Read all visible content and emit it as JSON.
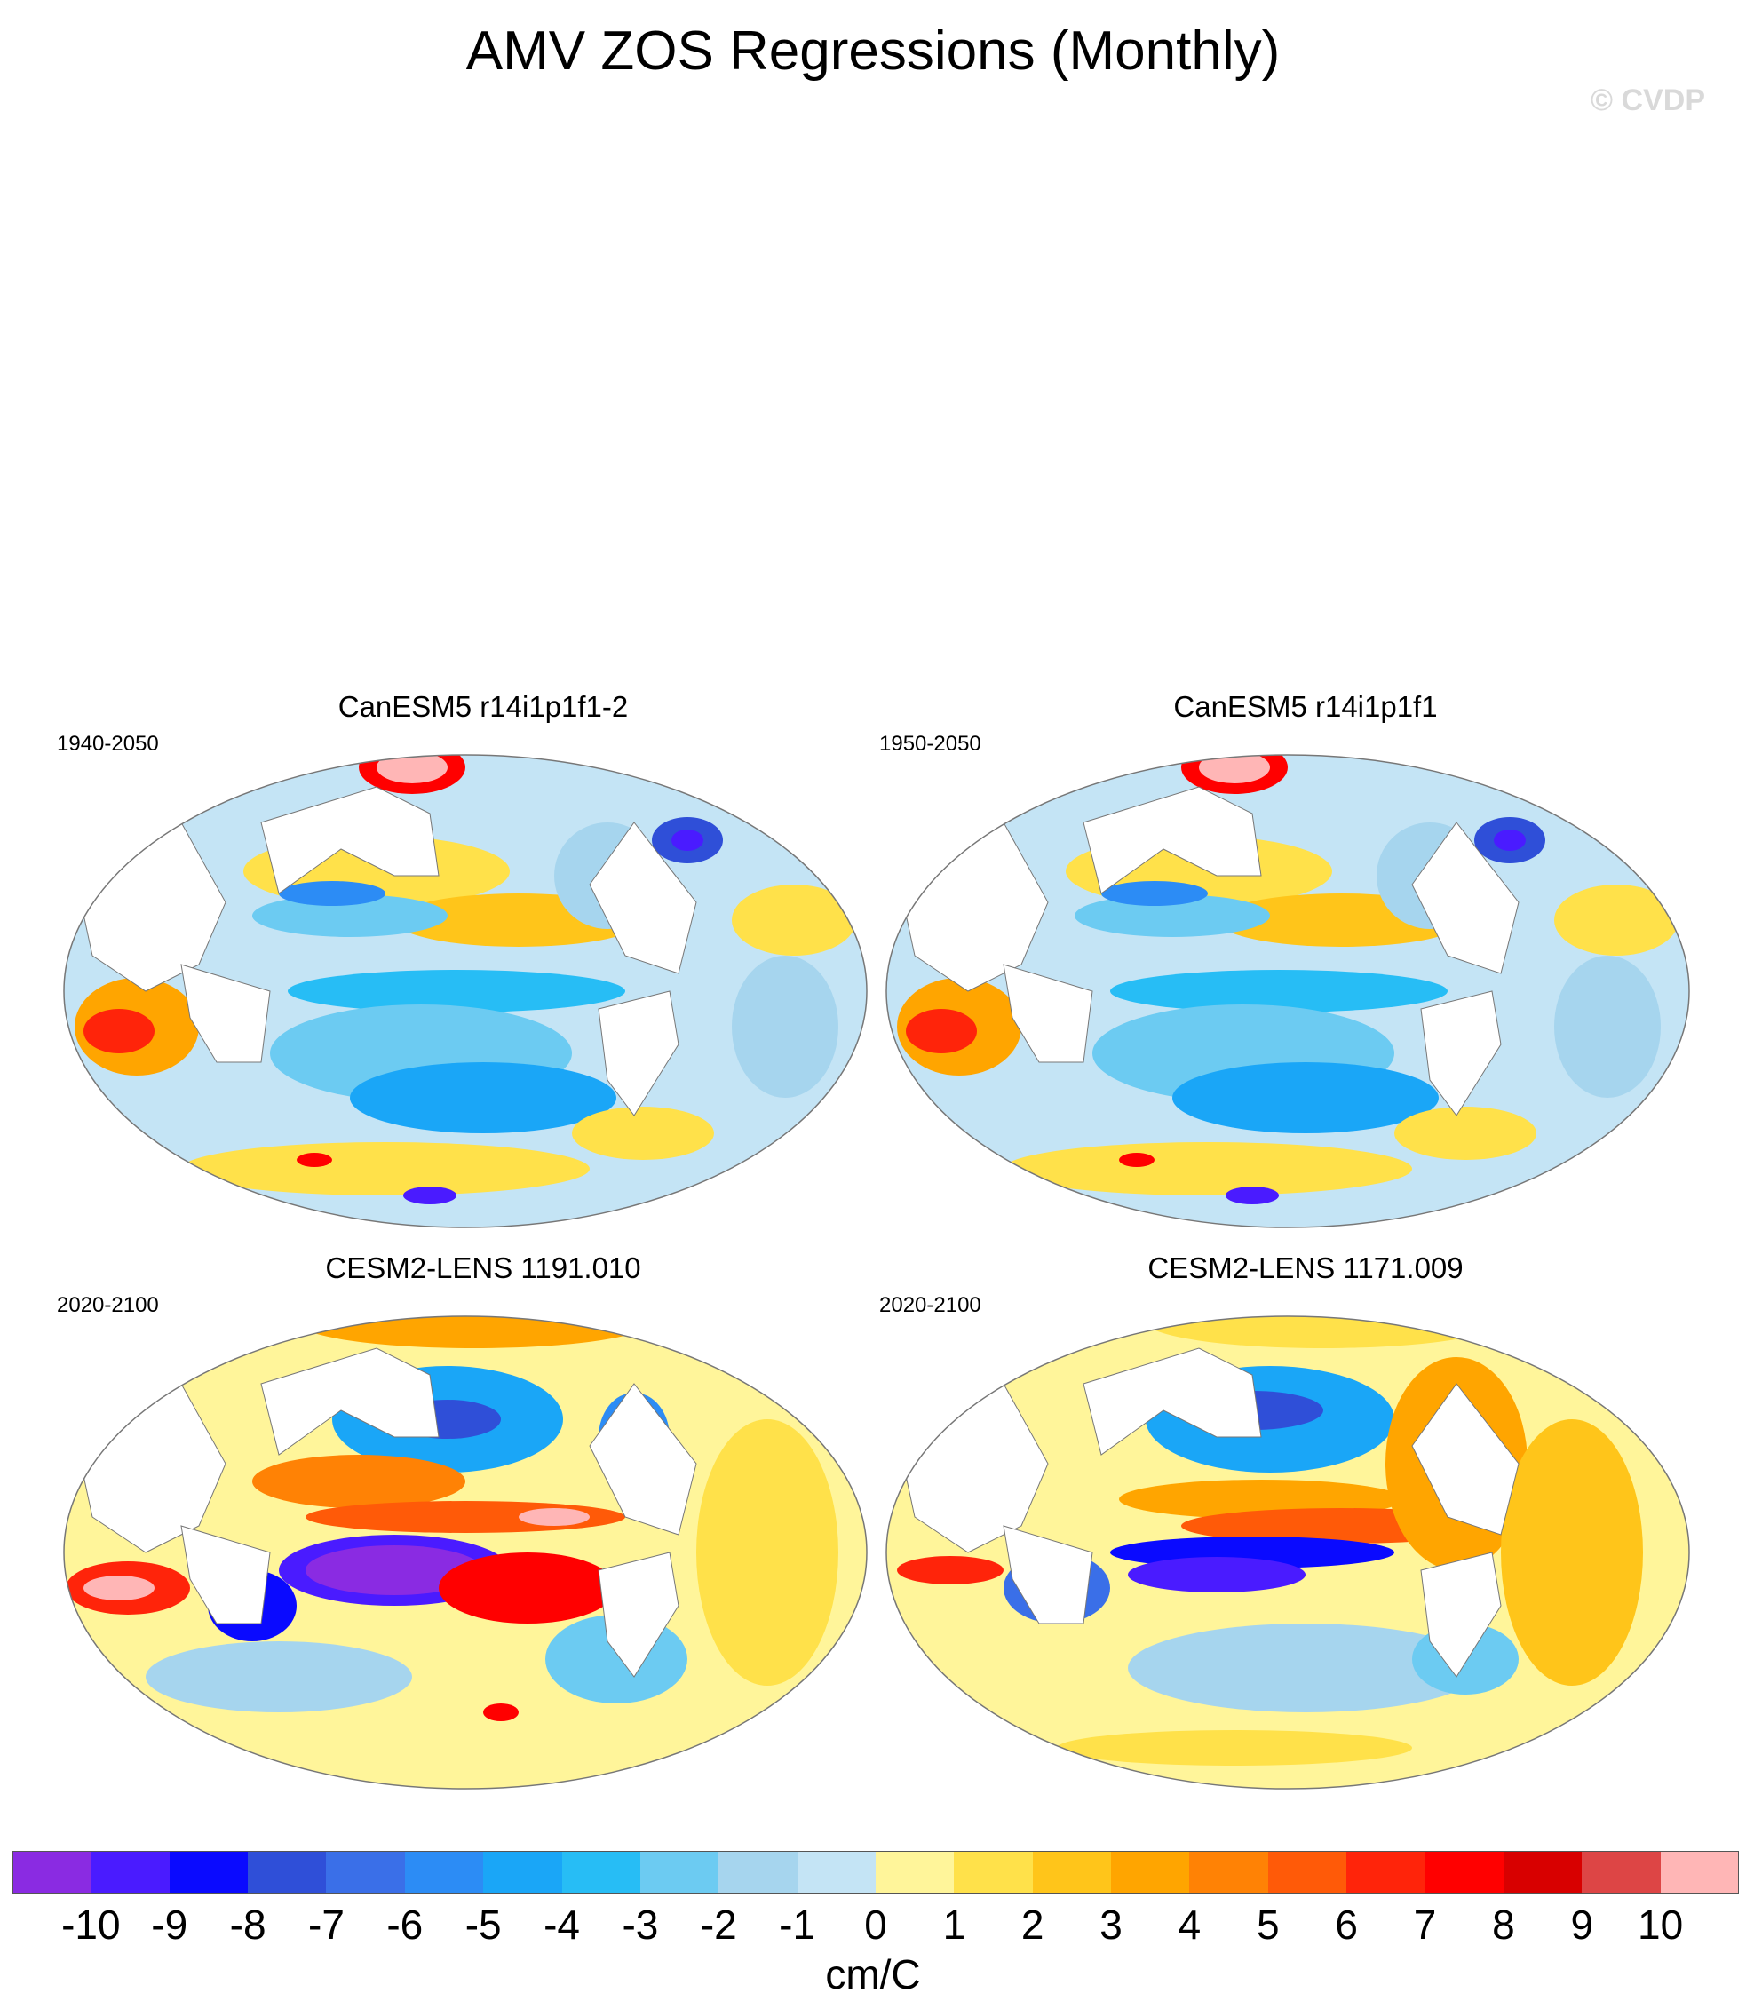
{
  "title": "AMV ZOS Regressions (Monthly)",
  "watermark": "© CVDP",
  "panels": [
    {
      "title": "CanESM5 r14i1p1f1-2",
      "years": "1940-2050"
    },
    {
      "title": "CanESM5 r14i1p1f1",
      "years": "1950-2050"
    },
    {
      "title": "CESM2-LENS 1191.010",
      "years": "2020-2100"
    },
    {
      "title": "CESM2-LENS 1171.009",
      "years": "2020-2100"
    }
  ],
  "colorbar": {
    "units": "cm/C",
    "levels": [
      "-10",
      "-9",
      "-8",
      "-7",
      "-6",
      "-5",
      "-4",
      "-3",
      "-2",
      "-1",
      "0",
      "1",
      "2",
      "3",
      "4",
      "5",
      "6",
      "7",
      "8",
      "9",
      "10"
    ],
    "colors": [
      "#8a2be2",
      "#4a1bff",
      "#0a0aff",
      "#2f4fd8",
      "#3a6fe8",
      "#2c8cf5",
      "#1aa6f7",
      "#27bdf5",
      "#6ccbf2",
      "#a6d5ee",
      "#c4e4f5",
      "#fff59a",
      "#ffe14a",
      "#ffc51a",
      "#ffa500",
      "#ff8205",
      "#ff5a08",
      "#ff240a",
      "#ff0000",
      "#d80000",
      "#dd4545",
      "#ffb6b6"
    ]
  }
}
